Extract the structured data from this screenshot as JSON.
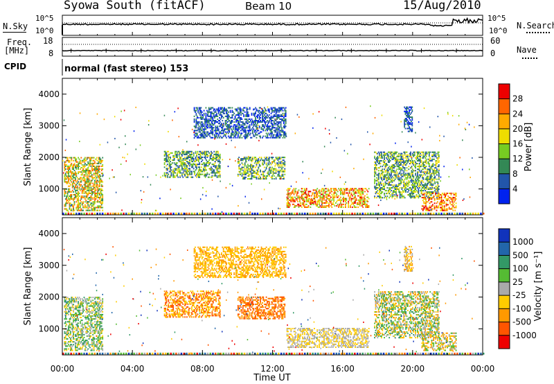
{
  "header": {
    "radar": "Syowa South (fitACF)",
    "beam": "Beam 10",
    "date": "15/Aug/2010"
  },
  "top_panels": {
    "nsky_label": "N.Sky",
    "nsky_ticks": [
      "10^5",
      "10^0"
    ],
    "nsearch_label": "N.Search",
    "nsearch_ticks": [
      "10^5",
      "10^0"
    ],
    "freq_label": "Freq.",
    "freq_unit": "[MHz]",
    "freq_ticks": [
      "18",
      "8"
    ],
    "nave_label": "Nave",
    "nave_ticks": [
      "60",
      "0"
    ],
    "cpid_label": "CPID",
    "cpid_text": "normal (fast stereo) 153"
  },
  "x_axis": {
    "label": "Time UT",
    "ticks": [
      "00:00",
      "04:00",
      "08:00",
      "12:00",
      "16:00",
      "20:00",
      "00:00"
    ]
  },
  "power_panel": {
    "ylabel": "Slant Range [km]",
    "yticks": [
      "4000",
      "3000",
      "2000",
      "1000"
    ],
    "colorbar_label": "Power [dB]",
    "colorbar_ticks": [
      "28",
      "24",
      "20",
      "16",
      "12",
      "8",
      "4"
    ],
    "colors": [
      "#0022ee",
      "#2255aa",
      "#338855",
      "#77cc22",
      "#eedd00",
      "#ffaa00",
      "#ff6600",
      "#ee0000"
    ]
  },
  "velocity_panel": {
    "ylabel": "Slant Range [km]",
    "yticks": [
      "4000",
      "3000",
      "2000",
      "1000"
    ],
    "colorbar_label": "Velocity [m s⁻¹]",
    "colorbar_ticks": [
      "1000",
      "500",
      "100",
      "25",
      "-25",
      "-100",
      "-500",
      "-1000"
    ],
    "colors": [
      "#1133bb",
      "#2266aa",
      "#339966",
      "#55bb33",
      "#aaaaaa",
      "#ffcc00",
      "#ff9900",
      "#ff5500",
      "#ee0000"
    ]
  },
  "chart_data": [
    {
      "type": "heatmap",
      "title": "Power",
      "x_range_hours": [
        0,
        24
      ],
      "ylim": [
        180,
        4500
      ],
      "clusters": [
        {
          "t": [
            0.1,
            2.3
          ],
          "r": [
            300,
            2000
          ],
          "c": [
            2,
            6
          ]
        },
        {
          "t": [
            5.8,
            9.0
          ],
          "r": [
            1350,
            2200
          ],
          "c": [
            1,
            4
          ]
        },
        {
          "t": [
            7.5,
            12.8
          ],
          "r": [
            2600,
            3600
          ],
          "c": [
            0,
            2
          ]
        },
        {
          "t": [
            10.0,
            12.7
          ],
          "r": [
            1300,
            2000
          ],
          "c": [
            1,
            4
          ]
        },
        {
          "t": [
            12.8,
            17.5
          ],
          "r": [
            400,
            1050
          ],
          "c": [
            3,
            7
          ]
        },
        {
          "t": [
            17.8,
            21.5
          ],
          "r": [
            700,
            2200
          ],
          "c": [
            1,
            4
          ]
        },
        {
          "t": [
            20.5,
            22.5
          ],
          "r": [
            300,
            900
          ],
          "c": [
            4,
            7
          ]
        },
        {
          "t": [
            19.5,
            20.0
          ],
          "r": [
            2800,
            3600
          ],
          "c": [
            0,
            2
          ]
        }
      ]
    },
    {
      "type": "heatmap",
      "title": "Velocity",
      "x_range_hours": [
        0,
        24
      ],
      "ylim": [
        180,
        4500
      ],
      "clusters": [
        {
          "t": [
            0.1,
            2.3
          ],
          "r": [
            300,
            2000
          ],
          "c": [
            2,
            5
          ]
        },
        {
          "t": [
            5.8,
            9.0
          ],
          "r": [
            1350,
            2200
          ],
          "c": [
            5,
            7
          ]
        },
        {
          "t": [
            7.5,
            12.8
          ],
          "r": [
            2600,
            3600
          ],
          "c": [
            5,
            6
          ]
        },
        {
          "t": [
            10.0,
            12.7
          ],
          "r": [
            1300,
            2000
          ],
          "c": [
            6,
            7
          ]
        },
        {
          "t": [
            12.8,
            17.5
          ],
          "r": [
            400,
            1050
          ],
          "c": [
            4,
            5
          ]
        },
        {
          "t": [
            17.8,
            21.5
          ],
          "r": [
            700,
            2200
          ],
          "c": [
            2,
            6
          ]
        },
        {
          "t": [
            20.5,
            22.5
          ],
          "r": [
            300,
            900
          ],
          "c": [
            3,
            6
          ]
        },
        {
          "t": [
            19.5,
            20.0
          ],
          "r": [
            2800,
            3600
          ],
          "c": [
            4,
            6
          ]
        }
      ]
    }
  ]
}
